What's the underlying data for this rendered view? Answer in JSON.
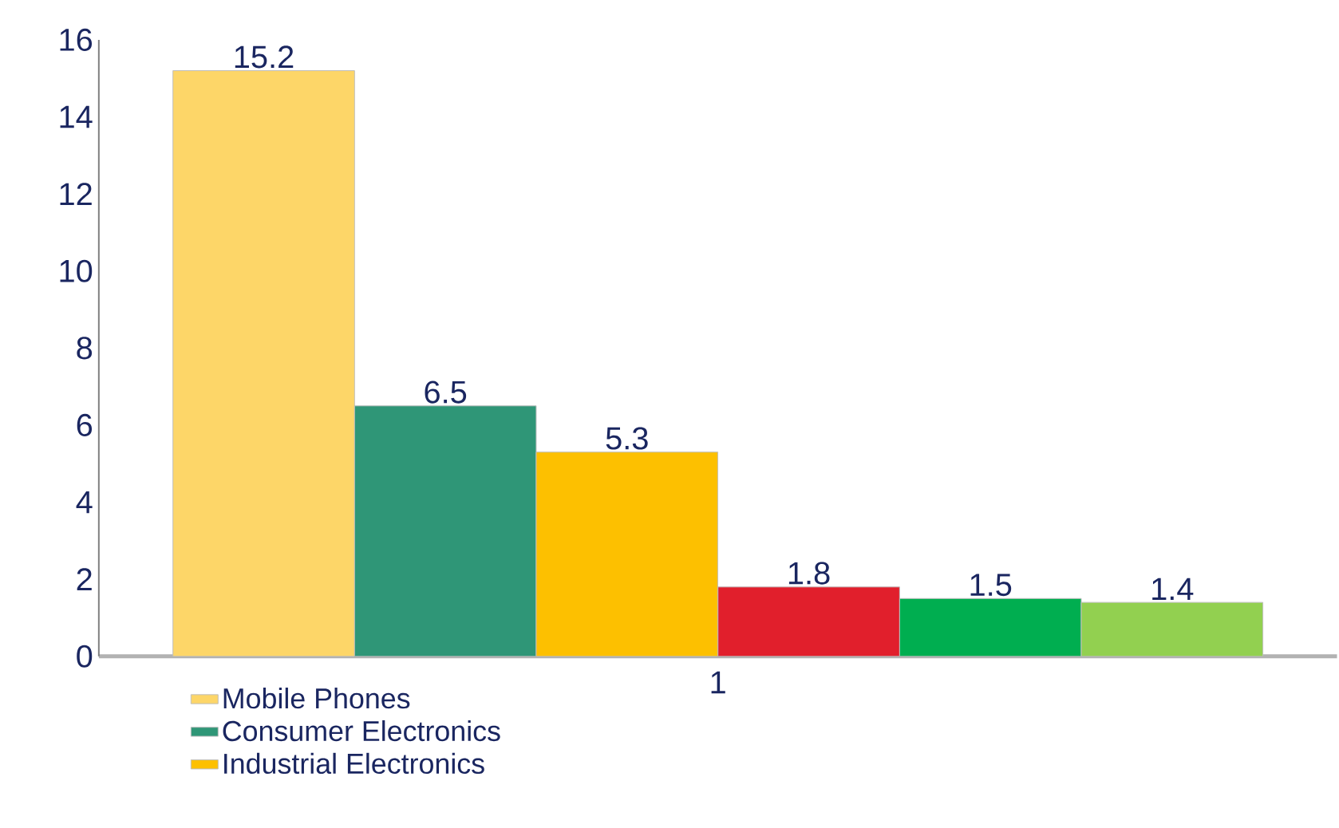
{
  "chart_data": {
    "type": "bar",
    "categories": [
      "1"
    ],
    "series": [
      {
        "name": "Mobile Phones",
        "color": "#fdd668",
        "values": [
          15.2
        ]
      },
      {
        "name": "Consumer Electronics",
        "color": "#2f9677",
        "values": [
          6.5
        ]
      },
      {
        "name": "Industrial Electronics",
        "color": "#fdc000",
        "values": [
          5.3
        ]
      },
      {
        "color": "#e11f2c",
        "values": [
          1.8
        ]
      },
      {
        "color": "#00ae50",
        "values": [
          1.5
        ]
      },
      {
        "color": "#92d050",
        "values": [
          1.4
        ]
      }
    ],
    "ylim": [
      0,
      16
    ],
    "yticks": [
      0,
      2,
      4,
      6,
      8,
      10,
      12,
      14,
      16
    ],
    "data_labels": true,
    "legend": "bottom left",
    "grid": false
  }
}
